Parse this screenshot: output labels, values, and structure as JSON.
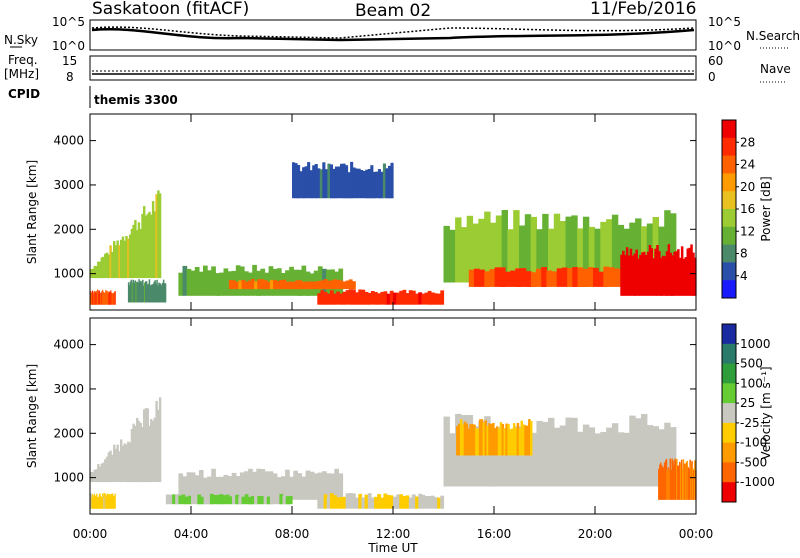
{
  "header": {
    "title": "Saskatoon (fitACF)",
    "beam": "Beam 02",
    "date": "11/Feb/2016"
  },
  "strip": {
    "nsky_label": "N.Sky",
    "nsky_ticks": [
      "10^5",
      "10^0"
    ],
    "nsearch_label": "N.Search",
    "freq_label": "Freq.",
    "freq_unit": "[MHz]",
    "freq_ticks": [
      "15",
      "8"
    ],
    "nave_ticks": [
      "60",
      "0"
    ],
    "nave_label": "Nave",
    "cpid_label": "CPID",
    "cpid_value": "themis 3300"
  },
  "chart_data": [
    {
      "type": "heatmap",
      "panel": "power",
      "ylabel": "Slant Range [km]",
      "ylim": [
        180,
        4600
      ],
      "yticks": [
        1000,
        2000,
        3000,
        4000
      ],
      "xlim": [
        0,
        24
      ],
      "xticks": [
        "00:00",
        "04:00",
        "08:00",
        "12:00",
        "16:00",
        "20:00",
        "00:00"
      ],
      "colorbar": {
        "label": "Power [dB]",
        "ticks": [
          "4",
          "8",
          "12",
          "16",
          "20",
          "24",
          "28"
        ],
        "colors": [
          "#1a1aff",
          "#2a4fa8",
          "#4a8a6a",
          "#66b033",
          "#9bcc33",
          "#e8c020",
          "#ff9a00",
          "#ff6000",
          "#ff2a00",
          "#ee0000"
        ],
        "range": [
          0,
          30
        ]
      },
      "regions": [
        {
          "t": [
            0.0,
            2.8
          ],
          "range_start": [
            900,
            1100
          ],
          "range_end": [
            900,
            2700
          ],
          "power": 14
        },
        {
          "t": [
            0.0,
            1.0
          ],
          "range": [
            300,
            600
          ],
          "power": 24
        },
        {
          "t": [
            1.5,
            3.0
          ],
          "range": [
            350,
            800
          ],
          "power": 8
        },
        {
          "t": [
            3.5,
            10.0
          ],
          "range": [
            500,
            1100
          ],
          "power": 10
        },
        {
          "t": [
            5.5,
            10.5
          ],
          "range": [
            650,
            850
          ],
          "power": 22
        },
        {
          "t": [
            9.0,
            14.0
          ],
          "range": [
            300,
            600
          ],
          "power": 26
        },
        {
          "t": [
            8.0,
            12.0
          ],
          "range": [
            2700,
            3400
          ],
          "power": 5
        },
        {
          "t": [
            14.0,
            23.2
          ],
          "range": [
            800,
            2200
          ],
          "power": 12
        },
        {
          "t": [
            15.0,
            23.2
          ],
          "range": [
            700,
            1100
          ],
          "power": 24
        },
        {
          "t": [
            21.0,
            24.0
          ],
          "range": [
            500,
            1500
          ],
          "power": 30
        }
      ]
    },
    {
      "type": "heatmap",
      "panel": "velocity",
      "ylabel": "Slant Range [km]",
      "ylim": [
        180,
        4600
      ],
      "yticks": [
        1000,
        2000,
        3000,
        4000
      ],
      "xlim": [
        0,
        24
      ],
      "xlabel": "Time UT",
      "xticks": [
        "00:00",
        "04:00",
        "08:00",
        "12:00",
        "16:00",
        "20:00",
        "00:00"
      ],
      "colorbar": {
        "label": "Velocity [m s^-1]",
        "ticks": [
          "1000",
          "500",
          "100",
          "25",
          "-25",
          "-100",
          "-500",
          "-1000"
        ],
        "colors": [
          "#1a2aa0",
          "#2a7a6a",
          "#2e9e3a",
          "#66cc33",
          "#c8c8c0",
          "#ffcc00",
          "#ff9a00",
          "#ff6600",
          "#ee0000"
        ],
        "range": [
          -1200,
          1200
        ]
      },
      "regions": [
        {
          "t": [
            0.0,
            2.8
          ],
          "range_start": [
            900,
            1100
          ],
          "range_end": [
            900,
            2700
          ],
          "velocity": 0
        },
        {
          "t": [
            0.0,
            1.0
          ],
          "range": [
            300,
            600
          ],
          "velocity": -200
        },
        {
          "t": [
            3.5,
            10.0
          ],
          "range": [
            500,
            1100
          ],
          "velocity": 0
        },
        {
          "t": [
            3.0,
            8.0
          ],
          "range": [
            400,
            600
          ],
          "velocity": 150
        },
        {
          "t": [
            9.0,
            14.0
          ],
          "range": [
            300,
            600
          ],
          "velocity": -100
        },
        {
          "t": [
            14.0,
            23.2
          ],
          "range": [
            800,
            2200
          ],
          "velocity": 0
        },
        {
          "t": [
            14.5,
            17.5
          ],
          "range": [
            1500,
            2200
          ],
          "velocity": -400
        },
        {
          "t": [
            22.5,
            24.0
          ],
          "range": [
            500,
            1300
          ],
          "velocity": -700
        }
      ]
    }
  ]
}
